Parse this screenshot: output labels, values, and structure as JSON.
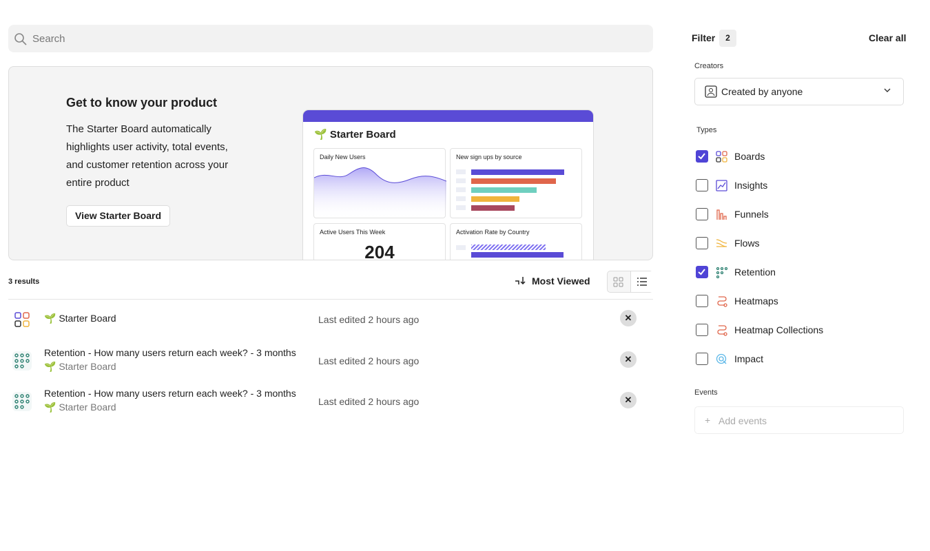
{
  "search": {
    "placeholder": "Search"
  },
  "promo": {
    "title": "Get to know your product",
    "body": "The Starter Board automatically highlights user activity, total events, and customer retention across your entire product",
    "button": "View Starter Board",
    "preview": {
      "title": "Starter Board",
      "cards": [
        "Daily New Users",
        "New sign ups by source",
        "Active Users This Week",
        "Activation Rate by Country"
      ],
      "metric": 204
    }
  },
  "results": {
    "count": "3 results",
    "sort": "Most Viewed",
    "items": [
      {
        "title": "Starter Board",
        "edited": "Last edited 2 hours ago"
      },
      {
        "title": "Retention - How many users return each week? - 3 months",
        "board": "Starter Board",
        "edited": "Last edited 2 hours ago"
      },
      {
        "title": "Retention - How many users return each week? - 3 months",
        "board": "Starter Board",
        "edited": "Last edited 2 hours ago"
      }
    ]
  },
  "filters": {
    "title": "Filter",
    "count": 2,
    "clear": "Clear all",
    "creators_label": "Creators",
    "creator": "Created by anyone",
    "types_label": "Types",
    "types": [
      {
        "label": "Boards",
        "checked": true
      },
      {
        "label": "Insights",
        "checked": false
      },
      {
        "label": "Funnels",
        "checked": false
      },
      {
        "label": "Flows",
        "checked": false
      },
      {
        "label": "Retention",
        "checked": true
      },
      {
        "label": "Heatmaps",
        "checked": false
      },
      {
        "label": "Heatmap Collections",
        "checked": false
      },
      {
        "label": "Impact",
        "checked": false
      }
    ],
    "events_label": "Events",
    "add_events": "Add events"
  }
}
